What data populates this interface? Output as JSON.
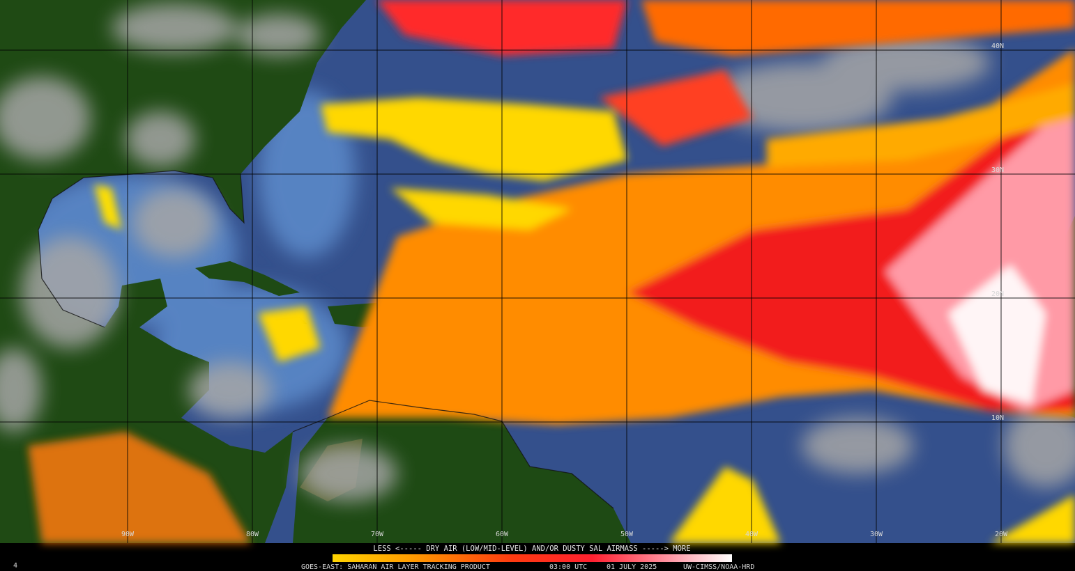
{
  "map": {
    "corner_label": "4",
    "grid": {
      "longitude_labels": [
        "90W",
        "80W",
        "70W",
        "60W",
        "50W",
        "40W",
        "30W",
        "20W"
      ],
      "latitude_labels": [
        "40N",
        "30N",
        "20N",
        "10N"
      ]
    },
    "legend": {
      "caption": "LESS <----- DRY AIR (LOW/MID-LEVEL) AND/OR DUSTY SAL AIRMASS -----> MORE",
      "product": "GOES-EAST: SAHARAN AIR LAYER TRACKING PRODUCT",
      "time": "03:00 UTC",
      "date": "01 JULY 2025",
      "credit": "UW-CIMSS/NOAA-HRD"
    }
  }
}
